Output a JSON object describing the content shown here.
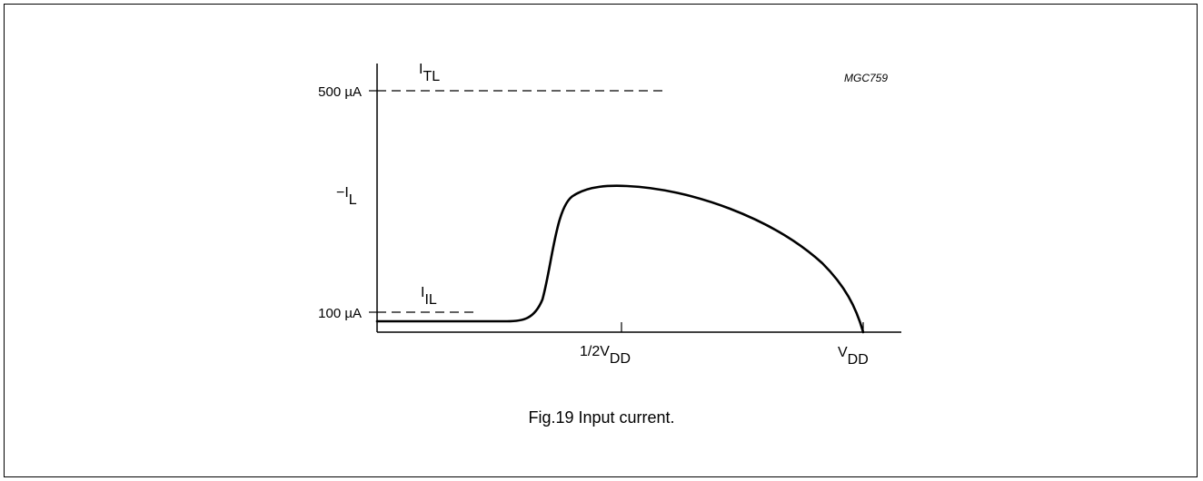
{
  "figure_id": "MGC759",
  "caption": "Fig.19  Input current.",
  "y_axis": {
    "ticks": [
      {
        "label": "500 µA"
      },
      {
        "label": "100 µA"
      }
    ],
    "mid_label": {
      "main": "−I",
      "sub": "L"
    }
  },
  "x_axis": {
    "ticks": [
      {
        "main": "1/2V",
        "sub": "DD"
      },
      {
        "main": "V",
        "sub": "DD"
      }
    ]
  },
  "lines": [
    {
      "main": "I",
      "sub": "TL",
      "style": "dashed"
    },
    {
      "main": "I",
      "sub": "IL",
      "style": "dashed"
    }
  ]
}
